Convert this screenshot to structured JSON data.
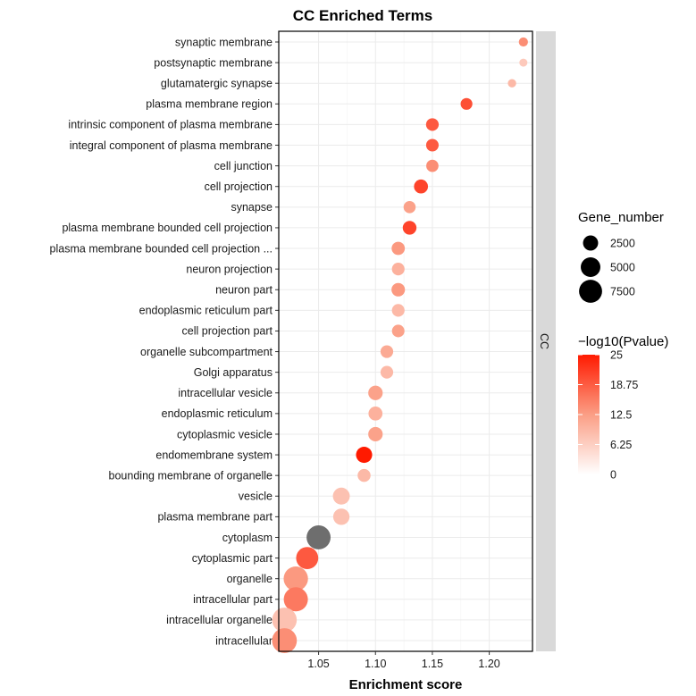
{
  "chart_data": {
    "type": "scatter",
    "title": "CC Enriched Terms",
    "xlabel": "Enrichment score",
    "ylabel": "",
    "xlim": [
      1.015,
      1.238
    ],
    "xticks": [
      1.05,
      1.1,
      1.15,
      1.2
    ],
    "xtick_labels": [
      "1.05",
      "1.10",
      "1.15",
      "1.20"
    ],
    "facet_label": "CC",
    "na_color": "#6e6e6e",
    "color_low": "#ffffff",
    "color_high": "#ff1a00",
    "terms": [
      {
        "term": "synaptic membrane",
        "score": 1.23,
        "genes": 500,
        "neglog10p": 14
      },
      {
        "term": "postsynaptic membrane",
        "score": 1.23,
        "genes": 300,
        "neglog10p": 7
      },
      {
        "term": "glutamatergic synapse",
        "score": 1.22,
        "genes": 350,
        "neglog10p": 9
      },
      {
        "term": "plasma membrane region",
        "score": 1.18,
        "genes": 1200,
        "neglog10p": 20
      },
      {
        "term": "intrinsic component of plasma membrane",
        "score": 1.15,
        "genes": 1500,
        "neglog10p": 19
      },
      {
        "term": "integral component of plasma membrane",
        "score": 1.15,
        "genes": 1450,
        "neglog10p": 19
      },
      {
        "term": "cell junction",
        "score": 1.15,
        "genes": 1350,
        "neglog10p": 14
      },
      {
        "term": "cell projection",
        "score": 1.14,
        "genes": 2000,
        "neglog10p": 21
      },
      {
        "term": "synapse",
        "score": 1.13,
        "genes": 1300,
        "neglog10p": 12
      },
      {
        "term": "plasma membrane bounded cell projection",
        "score": 1.13,
        "genes": 1900,
        "neglog10p": 21
      },
      {
        "term": "plasma membrane bounded cell projection ...",
        "score": 1.12,
        "genes": 1700,
        "neglog10p": 13
      },
      {
        "term": "neuron projection",
        "score": 1.12,
        "genes": 1500,
        "neglog10p": 10
      },
      {
        "term": "neuron part",
        "score": 1.12,
        "genes": 1800,
        "neglog10p": 13
      },
      {
        "term": "endoplasmic reticulum part",
        "score": 1.12,
        "genes": 1500,
        "neglog10p": 9
      },
      {
        "term": "cell projection part",
        "score": 1.12,
        "genes": 1450,
        "neglog10p": 12
      },
      {
        "term": "organelle subcompartment",
        "score": 1.11,
        "genes": 1500,
        "neglog10p": 11
      },
      {
        "term": "Golgi apparatus",
        "score": 1.11,
        "genes": 1500,
        "neglog10p": 9
      },
      {
        "term": "intracellular vesicle",
        "score": 1.1,
        "genes": 2200,
        "neglog10p": 12
      },
      {
        "term": "endoplasmic reticulum",
        "score": 1.1,
        "genes": 2000,
        "neglog10p": 10
      },
      {
        "term": "cytoplasmic vesicle",
        "score": 1.1,
        "genes": 2200,
        "neglog10p": 12
      },
      {
        "term": "endomembrane system",
        "score": 1.09,
        "genes": 3000,
        "neglog10p": 25
      },
      {
        "term": "bounding membrane of organelle",
        "score": 1.09,
        "genes": 1600,
        "neglog10p": 9
      },
      {
        "term": "vesicle",
        "score": 1.07,
        "genes": 3400,
        "neglog10p": 8
      },
      {
        "term": "plasma membrane part",
        "score": 1.07,
        "genes": 3100,
        "neglog10p": 8
      },
      {
        "term": "cytoplasm",
        "score": 1.05,
        "genes": 8300,
        "neglog10p": null
      },
      {
        "term": "cytoplasmic part",
        "score": 1.04,
        "genes": 6800,
        "neglog10p": 19
      },
      {
        "term": "organelle",
        "score": 1.03,
        "genes": 8600,
        "neglog10p": 13
      },
      {
        "term": "intracellular part",
        "score": 1.03,
        "genes": 8400,
        "neglog10p": 16
      },
      {
        "term": "intracellular organelle",
        "score": 1.02,
        "genes": 8800,
        "neglog10p": 8
      },
      {
        "term": "intracellular",
        "score": 1.02,
        "genes": 9000,
        "neglog10p": 14
      }
    ],
    "size_legend": {
      "title": "Gene_number",
      "values": [
        2500,
        5000,
        7500
      ],
      "labels": [
        "2500",
        "5000",
        "7500"
      ]
    },
    "color_legend": {
      "title": "−log10(Pvalue)",
      "min": 0,
      "max": 25,
      "values": [
        25,
        18.75,
        12.5,
        6.25,
        0
      ],
      "labels": [
        "25",
        "18.75",
        "12.5",
        "6.25",
        "0"
      ]
    }
  }
}
